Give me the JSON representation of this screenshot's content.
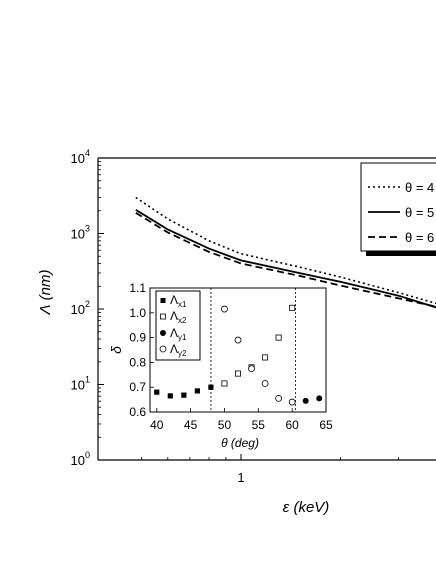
{
  "chart_data": [
    {
      "type": "line",
      "xlabel_symbol": "ε",
      "xlabel_unit": "(keV)",
      "ylabel_symbol": "Λ",
      "ylabel_unit": "(nm)",
      "xscale": "log",
      "yscale": "log",
      "xlim": [
        0.47,
        4.2
      ],
      "ylim": [
        1,
        10000
      ],
      "x_tick_labels": [
        "1"
      ],
      "y_tick_labels": [
        {
          "base": "10",
          "exp": "0",
          "value": 1
        },
        {
          "base": "10",
          "exp": "1",
          "value": 10
        },
        {
          "base": "10",
          "exp": "2",
          "value": 100
        },
        {
          "base": "10",
          "exp": "3",
          "value": 1000
        },
        {
          "base": "10",
          "exp": "4",
          "value": 10000
        }
      ],
      "legend_position": "top-right",
      "series": [
        {
          "name": "θ = 4",
          "style": "dotted",
          "x": [
            0.48,
            0.6,
            0.8,
            1.0,
            1.5,
            2.0,
            3.0,
            4.2
          ],
          "y": [
            3000,
            1560,
            800,
            540,
            360,
            265,
            165,
            108
          ]
        },
        {
          "name": "θ = 5",
          "style": "solid",
          "x": [
            0.48,
            0.6,
            0.8,
            1.0,
            1.5,
            2.0,
            3.0,
            4.2
          ],
          "y": [
            2060,
            1130,
            630,
            440,
            300,
            230,
            150,
            95
          ]
        },
        {
          "name": "θ = 6",
          "style": "dashed",
          "x": [
            0.48,
            0.6,
            0.8,
            1.0,
            1.5,
            2.0,
            3.0,
            4.2
          ],
          "y": [
            1880,
            1030,
            570,
            400,
            275,
            205,
            138,
            100
          ]
        }
      ]
    },
    {
      "type": "scatter",
      "xlabel_symbol": "θ",
      "xlabel_unit": "(deg)",
      "ylabel_symbol": "δ",
      "xlim": [
        39,
        65
      ],
      "ylim": [
        0.6,
        1.1
      ],
      "x_ticks": [
        40,
        45,
        50,
        55,
        60,
        65
      ],
      "y_ticks": [
        0.6,
        0.7,
        0.8,
        0.9,
        1.0,
        1.1
      ],
      "vlines": [
        48,
        60.5
      ],
      "legend_position": "top-left",
      "series": [
        {
          "name": "Λ",
          "sub": "x1",
          "marker": "filled-square",
          "x": [
            40,
            42,
            44,
            46,
            48
          ],
          "y": [
            0.68,
            0.665,
            0.668,
            0.685,
            0.7
          ]
        },
        {
          "name": "Λ",
          "sub": "x2",
          "marker": "open-square",
          "x": [
            50,
            52,
            54,
            56,
            58,
            60
          ],
          "y": [
            0.715,
            0.755,
            0.78,
            0.82,
            0.9,
            1.02
          ]
        },
        {
          "name": "Λ",
          "sub": "y1",
          "marker": "filled-circle",
          "x": [
            62,
            64
          ],
          "y": [
            0.645,
            0.655
          ]
        },
        {
          "name": "Λ",
          "sub": "y2",
          "marker": "open-circle",
          "x": [
            50,
            52,
            54,
            56,
            58,
            60
          ],
          "y": [
            1.015,
            0.89,
            0.775,
            0.715,
            0.655,
            0.64
          ]
        }
      ]
    }
  ]
}
